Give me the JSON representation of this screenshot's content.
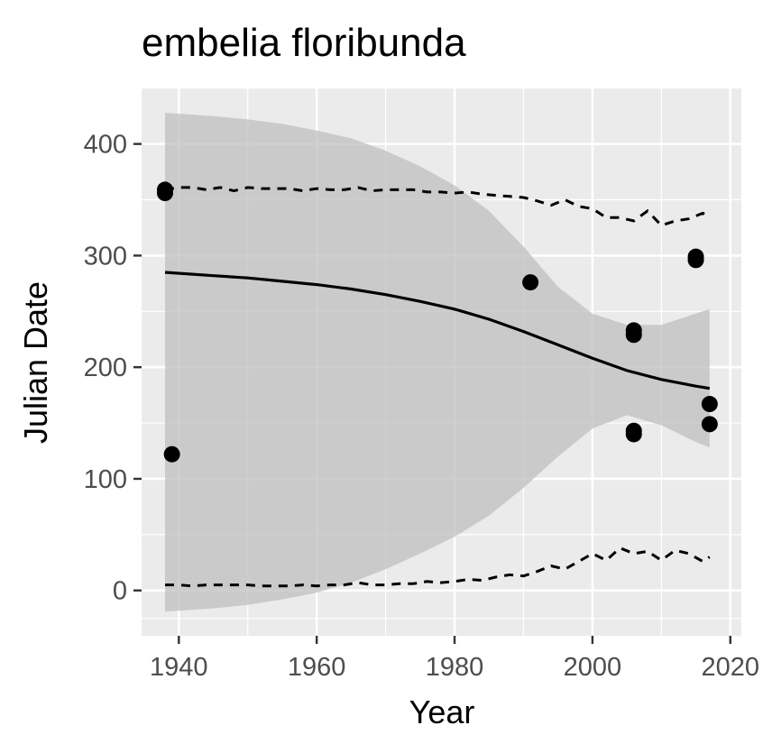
{
  "chart_data": {
    "type": "scatter",
    "title": "embelia floribunda",
    "xlabel": "Year",
    "ylabel": "Julian Date",
    "xlim": [
      1934.6,
      2021.6
    ],
    "ylim": [
      -40.6,
      450.6
    ],
    "x_ticks": [
      1940,
      1960,
      1980,
      2000,
      2020
    ],
    "y_ticks": [
      0,
      100,
      200,
      300,
      400
    ],
    "x_tick_labels": [
      "1940",
      "1960",
      "1980",
      "2000",
      "2020"
    ],
    "y_tick_labels": [
      "0",
      "100",
      "200",
      "300",
      "400"
    ],
    "grid": true,
    "legend": "none",
    "colors": {
      "panel": "#ebebeb",
      "grid": "#ffffff",
      "ribbon": "#bfbfbf",
      "points": "#000000",
      "fit_line": "#000000",
      "quantile_lines": "#000000"
    },
    "points": [
      {
        "x": 1938,
        "y": 359
      },
      {
        "x": 1938,
        "y": 356
      },
      {
        "x": 1939,
        "y": 122
      },
      {
        "x": 1991,
        "y": 276
      },
      {
        "x": 2006,
        "y": 233
      },
      {
        "x": 2006,
        "y": 229
      },
      {
        "x": 2006,
        "y": 143
      },
      {
        "x": 2006,
        "y": 140
      },
      {
        "x": 2015,
        "y": 299
      },
      {
        "x": 2015,
        "y": 296
      },
      {
        "x": 2017,
        "y": 167
      },
      {
        "x": 2017,
        "y": 149
      }
    ],
    "fit_line": {
      "x": [
        1938,
        1945,
        1950,
        1955,
        1960,
        1965,
        1970,
        1975,
        1980,
        1985,
        1990,
        1995,
        2000,
        2005,
        2010,
        2015,
        2017
      ],
      "y": [
        285,
        282,
        280,
        277,
        274,
        270,
        265,
        259,
        252,
        243,
        232,
        220,
        208,
        197,
        189,
        183,
        181
      ]
    },
    "confidence_band": {
      "x": [
        1938,
        1945,
        1950,
        1955,
        1960,
        1965,
        1970,
        1975,
        1980,
        1985,
        1990,
        1995,
        2000,
        2005,
        2010,
        2015,
        2017
      ],
      "upper": [
        428,
        425,
        422,
        418,
        412,
        405,
        394,
        380,
        363,
        340,
        308,
        272,
        248,
        238,
        238,
        248,
        252
      ],
      "lower": [
        -19,
        -16,
        -13,
        -8,
        -2,
        7,
        19,
        33,
        48,
        67,
        92,
        120,
        145,
        157,
        148,
        133,
        128
      ]
    },
    "upper_quantile_line": {
      "x": [
        1938,
        1940,
        1942,
        1944,
        1946,
        1948,
        1950,
        1952,
        1954,
        1956,
        1958,
        1960,
        1962,
        1964,
        1966,
        1968,
        1970,
        1972,
        1974,
        1976,
        1978,
        1980,
        1982,
        1984,
        1986,
        1988,
        1990,
        1992,
        1994,
        1996,
        1998,
        2000,
        2002,
        2004,
        2006,
        2008,
        2010,
        2012,
        2014,
        2016,
        2017
      ],
      "y": [
        359,
        361,
        361,
        359,
        361,
        358,
        361,
        360,
        360,
        360,
        358,
        360,
        359,
        359,
        361,
        358,
        359,
        359,
        359,
        357,
        357,
        356,
        357,
        355,
        354,
        353,
        352,
        349,
        345,
        350,
        344,
        342,
        334,
        334,
        331,
        340,
        327,
        331,
        333,
        338,
        335
      ]
    },
    "lower_quantile_line": {
      "x": [
        1938,
        1940,
        1942,
        1944,
        1946,
        1948,
        1950,
        1952,
        1954,
        1956,
        1958,
        1960,
        1962,
        1964,
        1966,
        1968,
        1970,
        1972,
        1974,
        1976,
        1978,
        1980,
        1982,
        1984,
        1986,
        1988,
        1990,
        1992,
        1994,
        1996,
        1998,
        2000,
        2002,
        2004,
        2006,
        2008,
        2010,
        2012,
        2014,
        2016,
        2017
      ],
      "y": [
        5,
        5,
        4,
        5,
        5,
        5,
        5,
        4,
        4,
        4,
        5,
        4,
        5,
        5,
        7,
        5,
        5,
        6,
        6,
        8,
        7,
        8,
        10,
        9,
        12,
        14,
        13,
        17,
        22,
        19,
        26,
        33,
        27,
        38,
        33,
        35,
        27,
        36,
        33,
        26,
        30
      ]
    }
  }
}
